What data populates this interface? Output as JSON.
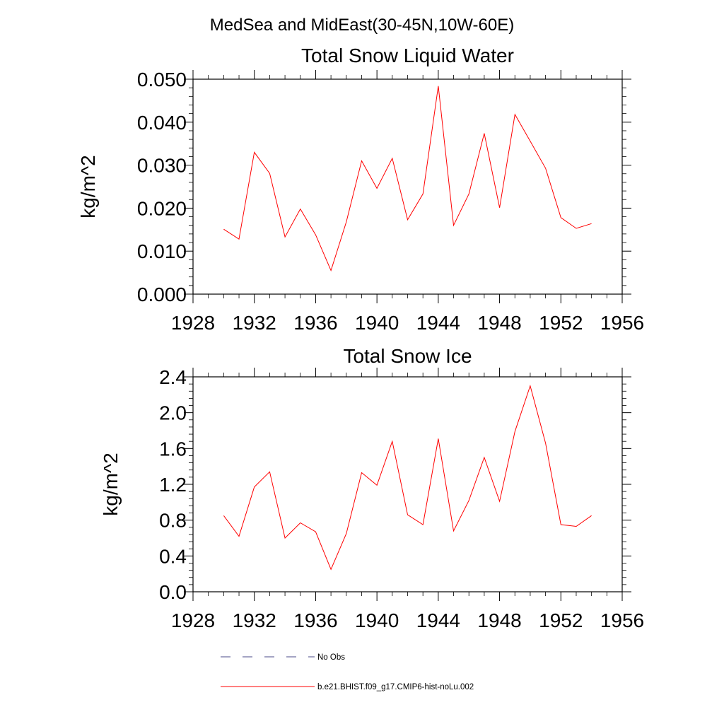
{
  "figure": {
    "main_title": "MedSea and MidEast(30-45N,10W-60E)"
  },
  "chart_data": [
    {
      "type": "line",
      "title": "Total Snow Liquid Water",
      "xlabel": "",
      "ylabel": "kg/m^2",
      "xlim": [
        1928,
        1956
      ],
      "ylim": [
        0,
        0.05
      ],
      "x_ticks": [
        "1928",
        "1932",
        "1936",
        "1940",
        "1944",
        "1948",
        "1952",
        "1956"
      ],
      "y_ticks": [
        "0.000",
        "0.010",
        "0.020",
        "0.030",
        "0.040",
        "0.050"
      ],
      "grid": false,
      "x": [
        1930,
        1931,
        1932,
        1933,
        1934,
        1935,
        1936,
        1937,
        1938,
        1939,
        1940,
        1941,
        1942,
        1943,
        1944,
        1945,
        1946,
        1947,
        1948,
        1949,
        1950,
        1951,
        1952,
        1953,
        1954
      ],
      "series": [
        {
          "name": "b.e21.BHIST.f09_g17.CMIP6-hist-noLu.002",
          "color": "#ff0000",
          "values": [
            0.0151,
            0.0128,
            0.033,
            0.0281,
            0.0133,
            0.0198,
            0.0138,
            0.0055,
            0.0168,
            0.031,
            0.0246,
            0.0316,
            0.0173,
            0.0233,
            0.0484,
            0.016,
            0.0233,
            0.0374,
            0.0201,
            0.0418,
            0.0356,
            0.0293,
            0.0178,
            0.0153,
            0.0164
          ]
        }
      ]
    },
    {
      "type": "line",
      "title": "Total Snow Ice",
      "xlabel": "",
      "ylabel": "kg/m^2",
      "xlim": [
        1928,
        1956
      ],
      "ylim": [
        0,
        2.4
      ],
      "x_ticks": [
        "1928",
        "1932",
        "1936",
        "1940",
        "1944",
        "1948",
        "1952",
        "1956"
      ],
      "y_ticks": [
        "0.0",
        "0.4",
        "0.8",
        "1.2",
        "1.6",
        "2.0",
        "2.4"
      ],
      "grid": false,
      "x": [
        1930,
        1931,
        1932,
        1933,
        1934,
        1935,
        1936,
        1937,
        1938,
        1939,
        1940,
        1941,
        1942,
        1943,
        1944,
        1945,
        1946,
        1947,
        1948,
        1949,
        1950,
        1951,
        1952,
        1953,
        1954
      ],
      "series": [
        {
          "name": "b.e21.BHIST.f09_g17.CMIP6-hist-noLu.002",
          "color": "#ff0000",
          "values": [
            0.85,
            0.62,
            1.17,
            1.34,
            0.6,
            0.77,
            0.67,
            0.25,
            0.65,
            1.33,
            1.19,
            1.68,
            0.86,
            0.75,
            1.71,
            0.68,
            1.02,
            1.5,
            1.01,
            1.79,
            2.3,
            1.66,
            0.75,
            0.73,
            0.85
          ]
        }
      ]
    }
  ],
  "legend": {
    "placement": "bottom",
    "items": [
      {
        "label": "No Obs",
        "color": "#4a4a8a",
        "style": "dashed"
      },
      {
        "label": "b.e21.BHIST.f09_g17.CMIP6-hist-noLu.002",
        "color": "#ff0000",
        "style": "solid"
      }
    ]
  }
}
